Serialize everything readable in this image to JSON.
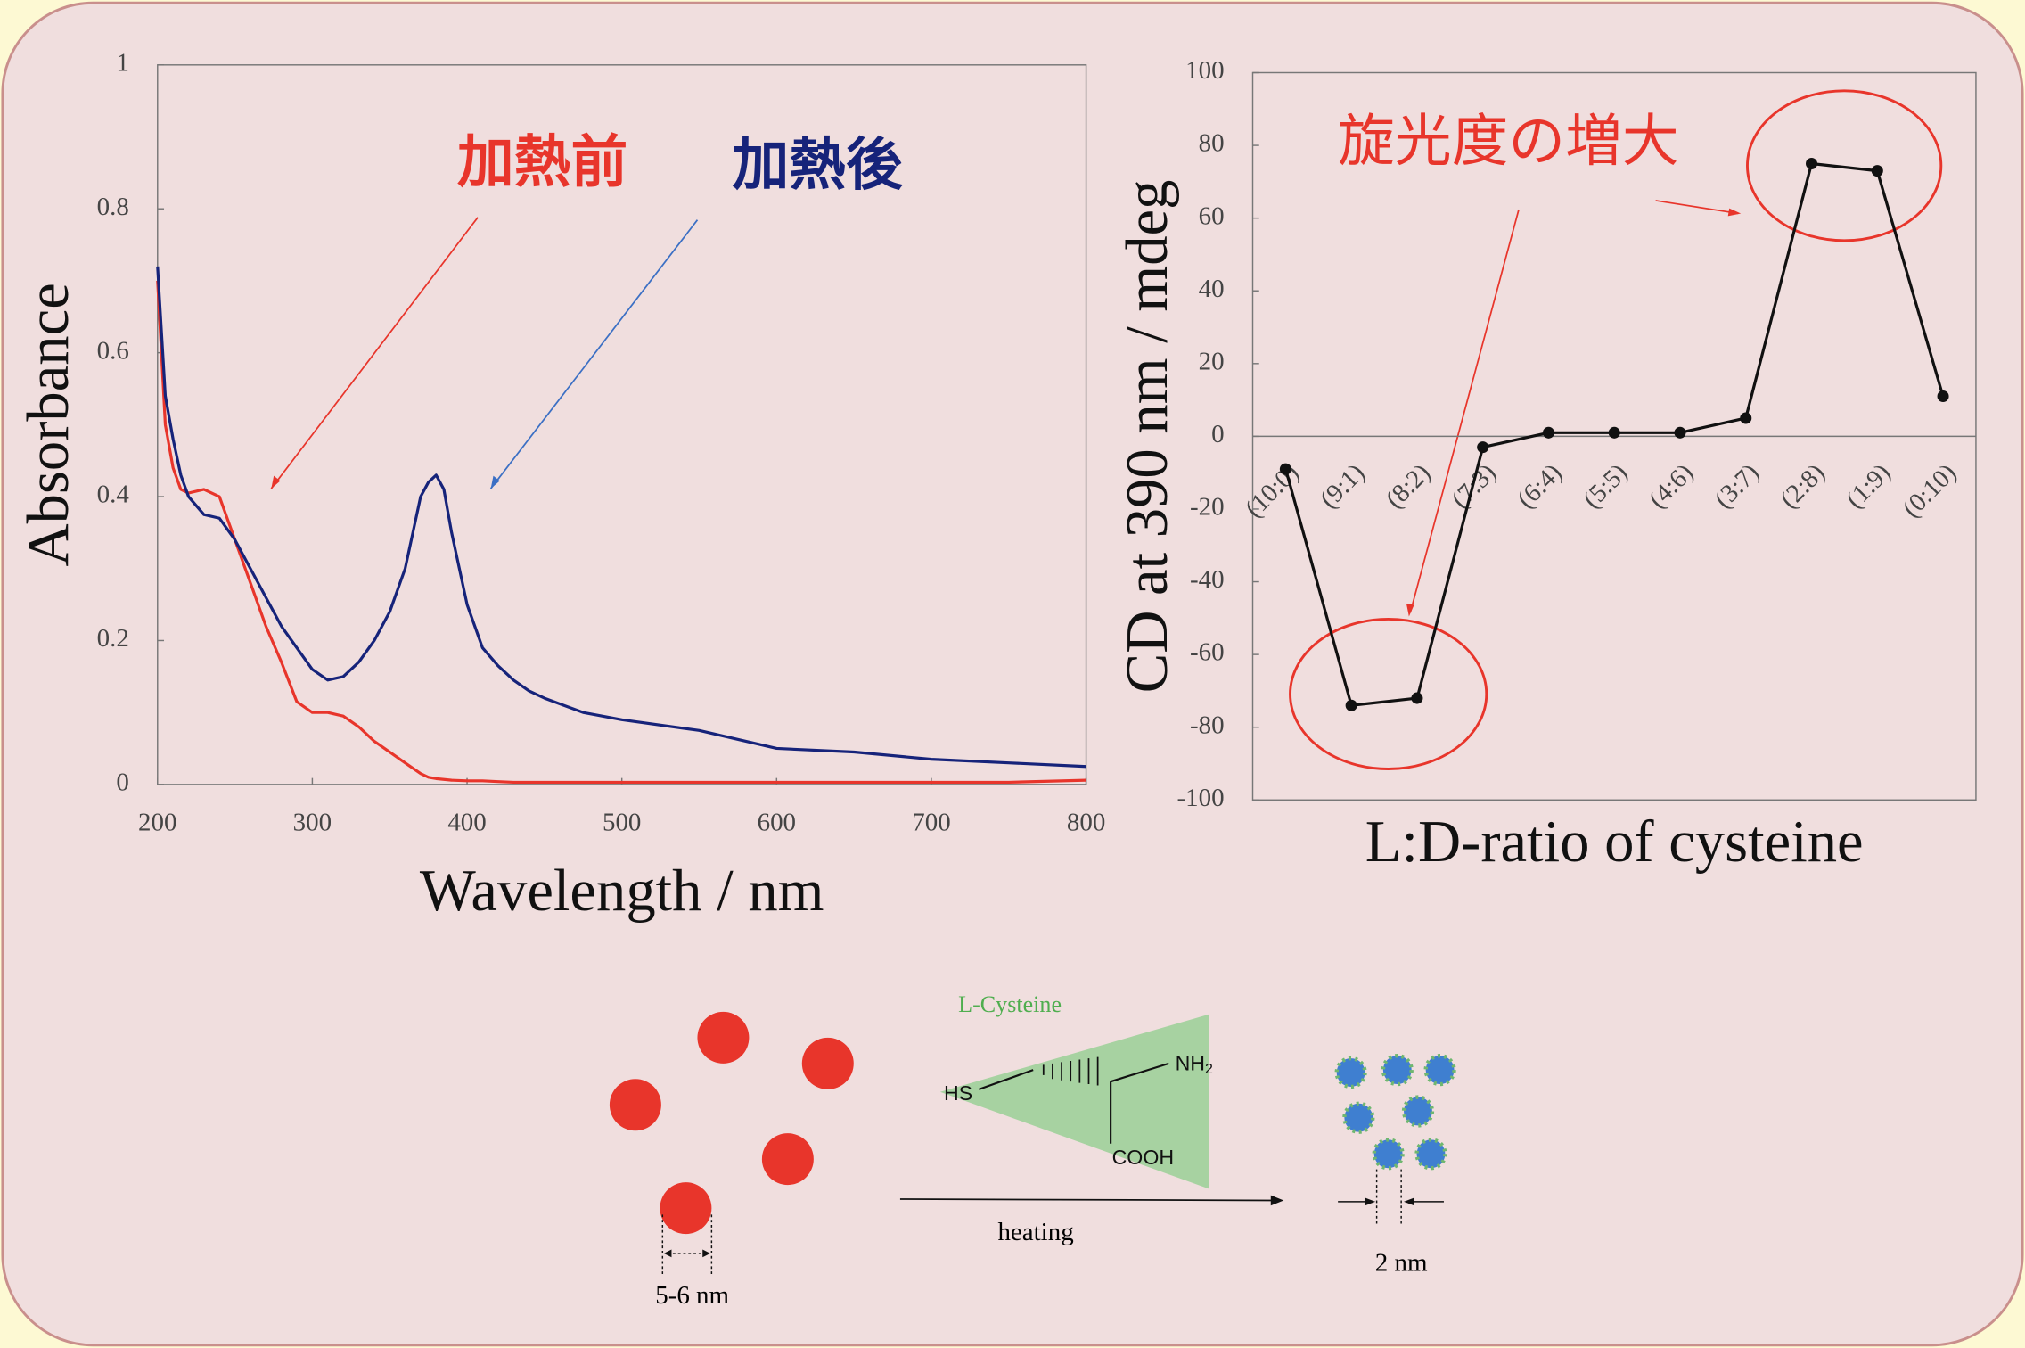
{
  "chart_data": [
    {
      "type": "line",
      "x": [
        200,
        205,
        210,
        215,
        220,
        230,
        240,
        250,
        260,
        270,
        280,
        290,
        300,
        310,
        320,
        330,
        340,
        350,
        360,
        370,
        375,
        380,
        385,
        390,
        400,
        410,
        420,
        430,
        440,
        450,
        475,
        500,
        550,
        600,
        650,
        700,
        750,
        800
      ],
      "series": [
        {
          "name": "加熱前",
          "color": "#e8352b",
          "values": [
            0.7,
            0.5,
            0.44,
            0.41,
            0.405,
            0.41,
            0.4,
            0.34,
            0.28,
            0.22,
            0.17,
            0.115,
            0.1,
            0.1,
            0.095,
            0.08,
            0.06,
            0.045,
            0.03,
            0.015,
            0.01,
            0.008,
            0.007,
            0.006,
            0.005,
            0.005,
            0.004,
            0.003,
            0.003,
            0.003,
            0.003,
            0.003,
            0.003,
            0.003,
            0.003,
            0.003,
            0.003,
            0.006
          ]
        },
        {
          "name": "加熱後",
          "color": "#16237a",
          "values": [
            0.72,
            0.54,
            0.48,
            0.43,
            0.4,
            0.375,
            0.37,
            0.34,
            0.3,
            0.26,
            0.22,
            0.19,
            0.16,
            0.145,
            0.15,
            0.17,
            0.2,
            0.24,
            0.3,
            0.4,
            0.42,
            0.43,
            0.41,
            0.35,
            0.25,
            0.19,
            0.165,
            0.145,
            0.13,
            0.12,
            0.1,
            0.09,
            0.075,
            0.05,
            0.045,
            0.035,
            0.03,
            0.025
          ]
        }
      ],
      "xlabel": "Wavelength / nm",
      "ylabel": "Absorbance",
      "xlim": [
        200,
        800
      ],
      "xticks": [
        200,
        300,
        400,
        500,
        600,
        700,
        800
      ],
      "ylim": [
        0,
        1
      ],
      "yticks": [
        0,
        0.2,
        0.4,
        0.6,
        0.8,
        1
      ]
    },
    {
      "type": "line",
      "categories": [
        "(10:0)",
        "(9:1)",
        "(8:2)",
        "(7:3)",
        "(6:4)",
        "(5:5)",
        "(4:6)",
        "(3:7)",
        "(2:8)",
        "(1:9)",
        "(0:10)"
      ],
      "values": [
        -9,
        -74,
        -72,
        -3,
        1,
        1,
        1,
        5,
        75,
        73,
        11
      ],
      "color": "#111111",
      "annotation": "旋光度の増大",
      "xlabel": "L:D-ratio of cysteine",
      "ylabel": "CD at 390 nm / mdeg",
      "ylim": [
        -100,
        100
      ],
      "yticks": [
        -100,
        -80,
        -60,
        -40,
        -20,
        0,
        20,
        40,
        60,
        80,
        100
      ]
    }
  ],
  "diagram": {
    "ligand": "L-Cysteine",
    "thiol": "HS",
    "amine": "NH",
    "amine_sub": "2",
    "acid": "COOH",
    "process": "heating",
    "size_before": "5-6 nm",
    "size_after": "2 nm"
  }
}
